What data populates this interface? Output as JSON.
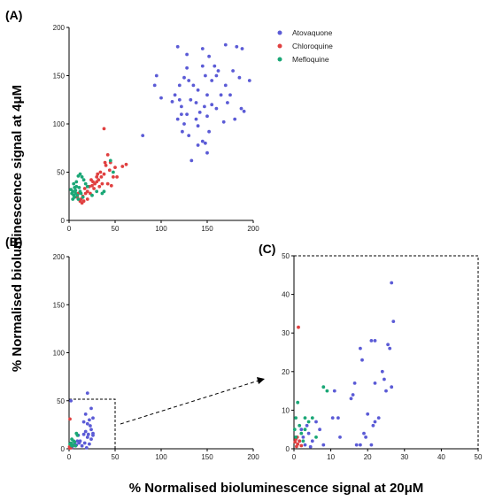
{
  "figure": {
    "ylabel": "% Normalised bioluminescence signal at 4μM",
    "xlabel": "% Normalised bioluminescence signal at 20μM",
    "colors": {
      "Atovaquone": "#5b5bd6",
      "Chloroquine": "#e04040",
      "Mefloquine": "#1aa776"
    }
  },
  "chart_data": [
    {
      "panel_label": "(A)",
      "type": "scatter",
      "xlim": [
        0,
        200
      ],
      "ylim": [
        0,
        200
      ],
      "xticks": [
        0,
        50,
        100,
        150,
        200
      ],
      "yticks": [
        0,
        50,
        100,
        150,
        200
      ],
      "grid": false,
      "legend": "top-right",
      "series": [
        {
          "name": "Atovaquone",
          "color": "#5b5bd6",
          "points": [
            [
              118,
              180
            ],
            [
              128,
              172
            ],
            [
              145,
              178
            ],
            [
              152,
              170
            ],
            [
              170,
              182
            ],
            [
              182,
              180
            ],
            [
              188,
              178
            ],
            [
              196,
              145
            ],
            [
              187,
              116
            ],
            [
              190,
              113
            ],
            [
              95,
              150
            ],
            [
              93,
              140
            ],
            [
              100,
              127
            ],
            [
              112,
              123
            ],
            [
              115,
              130
            ],
            [
              120,
              125
            ],
            [
              122,
              118
            ],
            [
              122,
              110
            ],
            [
              118,
              105
            ],
            [
              128,
              110
            ],
            [
              125,
              100
            ],
            [
              123,
              92
            ],
            [
              130,
              88
            ],
            [
              140,
              98
            ],
            [
              145,
              82
            ],
            [
              148,
              80
            ],
            [
              152,
              92
            ],
            [
              150,
              70
            ],
            [
              133,
              62
            ],
            [
              140,
              78
            ],
            [
              138,
              105
            ],
            [
              142,
              112
            ],
            [
              147,
              118
            ],
            [
              150,
              108
            ],
            [
              155,
              120
            ],
            [
              160,
              116
            ],
            [
              168,
              102
            ],
            [
              165,
              130
            ],
            [
              170,
              140
            ],
            [
              178,
              155
            ],
            [
              185,
              148
            ],
            [
              175,
              130
            ],
            [
              160,
              150
            ],
            [
              158,
              160
            ],
            [
              150,
              130
            ],
            [
              140,
              135
            ],
            [
              135,
              140
            ],
            [
              130,
              145
            ],
            [
              132,
              125
            ],
            [
              138,
              122
            ],
            [
              128,
              158
            ],
            [
              125,
              148
            ],
            [
              145,
              160
            ],
            [
              155,
              145
            ],
            [
              162,
              155
            ],
            [
              80,
              88
            ],
            [
              172,
              122
            ],
            [
              180,
              105
            ],
            [
              120,
              140
            ],
            [
              148,
              150
            ]
          ]
        },
        {
          "name": "Chloroquine",
          "color": "#e04040",
          "points": [
            [
              38,
              95
            ],
            [
              42,
              68
            ],
            [
              45,
              60
            ],
            [
              62,
              58
            ],
            [
              58,
              56
            ],
            [
              50,
              55
            ],
            [
              44,
              52
            ],
            [
              38,
              48
            ],
            [
              35,
              45
            ],
            [
              32,
              42
            ],
            [
              30,
              40
            ],
            [
              28,
              38
            ],
            [
              25,
              36
            ],
            [
              22,
              35
            ],
            [
              20,
              30
            ],
            [
              18,
              28
            ],
            [
              15,
              25
            ],
            [
              13,
              22
            ],
            [
              12,
              20
            ],
            [
              14,
              18
            ],
            [
              10,
              28
            ],
            [
              17,
              33
            ],
            [
              26,
              40
            ],
            [
              30,
              45
            ],
            [
              34,
              50
            ],
            [
              40,
              57
            ],
            [
              48,
              45
            ],
            [
              42,
              38
            ],
            [
              36,
              38
            ],
            [
              24,
              42
            ],
            [
              20,
              22
            ],
            [
              16,
              20
            ],
            [
              9,
              24
            ],
            [
              27,
              33
            ],
            [
              33,
              35
            ],
            [
              46,
              36
            ],
            [
              52,
              45
            ],
            [
              39,
              60
            ],
            [
              31,
              48
            ],
            [
              23,
              28
            ]
          ]
        },
        {
          "name": "Mefloquine",
          "color": "#1aa776",
          "points": [
            [
              2,
              32
            ],
            [
              4,
              30
            ],
            [
              3,
              28
            ],
            [
              5,
              26
            ],
            [
              6,
              34
            ],
            [
              7,
              31
            ],
            [
              8,
              40
            ],
            [
              10,
              46
            ],
            [
              12,
              48
            ],
            [
              14,
              45
            ],
            [
              16,
              42
            ],
            [
              18,
              38
            ],
            [
              20,
              35
            ],
            [
              12,
              30
            ],
            [
              9,
              26
            ],
            [
              6,
              24
            ],
            [
              10,
              22
            ],
            [
              15,
              24
            ],
            [
              25,
              26
            ],
            [
              30,
              30
            ],
            [
              45,
              62
            ],
            [
              48,
              50
            ],
            [
              38,
              30
            ],
            [
              36,
              28
            ],
            [
              8,
              35
            ],
            [
              5,
              38
            ],
            [
              4,
              22
            ],
            [
              11,
              34
            ],
            [
              13,
              28
            ],
            [
              7,
              28
            ]
          ]
        }
      ]
    },
    {
      "panel_label": "(B)",
      "type": "scatter",
      "xlim": [
        0,
        200
      ],
      "ylim": [
        0,
        200
      ],
      "xticks": [
        0,
        50,
        100,
        150,
        200
      ],
      "yticks": [
        0,
        50,
        100,
        150,
        200
      ],
      "grid": false,
      "series": [
        {
          "name": "Atovaquone",
          "color": "#5b5bd6",
          "points": [
            [
              20,
              58
            ],
            [
              2,
              50
            ],
            [
              24,
              42
            ],
            [
              18,
              36
            ],
            [
              26,
              32
            ],
            [
              22,
              30
            ],
            [
              16,
              28
            ],
            [
              20,
              26
            ],
            [
              23,
              24
            ],
            [
              24,
              20
            ],
            [
              18,
              18
            ],
            [
              26,
              16
            ],
            [
              16,
              15
            ],
            [
              10,
              14
            ],
            [
              20,
              12
            ],
            [
              24,
              10
            ],
            [
              12,
              8
            ],
            [
              17,
              6
            ],
            [
              22,
              5
            ],
            [
              8,
              4
            ],
            [
              4,
              3
            ],
            [
              2,
              2
            ],
            [
              6,
              5
            ],
            [
              14,
              3
            ],
            [
              19,
              1
            ],
            [
              3,
              1
            ],
            [
              26,
              14
            ],
            [
              21,
              15
            ],
            [
              11,
              6
            ],
            [
              9,
              8
            ]
          ]
        },
        {
          "name": "Chloroquine",
          "color": "#e04040",
          "points": [
            [
              1,
              31
            ],
            [
              0.5,
              2
            ],
            [
              1,
              1.5
            ],
            [
              1.5,
              3
            ],
            [
              0.8,
              0.8
            ],
            [
              2,
              1
            ]
          ]
        },
        {
          "name": "Mefloquine",
          "color": "#1aa776",
          "points": [
            [
              8,
              16
            ],
            [
              9,
              14
            ],
            [
              5,
              8
            ],
            [
              3,
              10
            ],
            [
              6,
              7
            ],
            [
              2,
              6
            ],
            [
              1,
              5
            ],
            [
              4,
              4
            ],
            [
              3,
              3
            ],
            [
              7,
              3
            ]
          ]
        }
      ]
    },
    {
      "panel_label": "(C)",
      "type": "scatter",
      "xlim": [
        0,
        50
      ],
      "ylim": [
        0,
        50
      ],
      "xticks": [
        0,
        10,
        20,
        30,
        40,
        50
      ],
      "yticks": [
        0,
        10,
        20,
        30,
        40,
        50
      ],
      "grid": false,
      "series": [
        {
          "name": "Atovaquone",
          "color": "#5b5bd6",
          "points": [
            [
              26.5,
              43
            ],
            [
              27,
              33
            ],
            [
              18,
              26
            ],
            [
              21,
              28
            ],
            [
              22,
              28
            ],
            [
              25.5,
              27
            ],
            [
              26,
              26
            ],
            [
              18.5,
              23
            ],
            [
              16.5,
              17
            ],
            [
              24,
              20
            ],
            [
              24.5,
              18
            ],
            [
              22,
              17
            ],
            [
              25,
              15
            ],
            [
              26.5,
              16
            ],
            [
              16,
              14
            ],
            [
              15.5,
              13
            ],
            [
              11,
              15
            ],
            [
              10.5,
              8
            ],
            [
              12,
              8
            ],
            [
              20,
              9
            ],
            [
              22,
              7
            ],
            [
              21.5,
              6
            ],
            [
              19,
              4
            ],
            [
              19.5,
              3
            ],
            [
              12.5,
              3
            ],
            [
              7,
              5
            ],
            [
              4,
              4
            ],
            [
              2.5,
              3
            ],
            [
              1.5,
              2
            ],
            [
              3,
              1
            ],
            [
              23,
              8
            ],
            [
              18,
              1
            ],
            [
              21,
              1
            ],
            [
              17,
              1
            ],
            [
              6,
              7
            ],
            [
              5,
              2
            ],
            [
              3.5,
              6
            ],
            [
              2,
              5
            ],
            [
              4.5,
              0.5
            ],
            [
              8,
              1
            ]
          ]
        },
        {
          "name": "Chloroquine",
          "color": "#e04040",
          "points": [
            [
              1.2,
              31.5
            ],
            [
              0.5,
              2.5
            ],
            [
              1,
              1.2
            ],
            [
              0.7,
              0.6
            ],
            [
              1.5,
              2
            ],
            [
              0.3,
              1.8
            ],
            [
              2,
              0.8
            ],
            [
              0.9,
              3
            ]
          ]
        },
        {
          "name": "Mefloquine",
          "color": "#1aa776",
          "points": [
            [
              9,
              15
            ],
            [
              8,
              16
            ],
            [
              1,
              12
            ],
            [
              0.5,
              8
            ],
            [
              1.5,
              6
            ],
            [
              4,
              7
            ],
            [
              5,
              8
            ],
            [
              3,
              8
            ],
            [
              2,
              4
            ],
            [
              0.2,
              5
            ],
            [
              6,
              3
            ],
            [
              3,
              5
            ],
            [
              0.5,
              3
            ],
            [
              2.5,
              2
            ]
          ]
        }
      ]
    }
  ]
}
